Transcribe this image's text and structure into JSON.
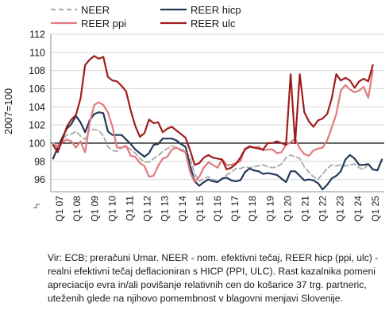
{
  "chart_data": {
    "type": "line",
    "ylabel": "2007=100",
    "ylim": [
      95,
      112
    ],
    "yticks": [
      96,
      98,
      100,
      102,
      104,
      106,
      108,
      110,
      112
    ],
    "axis_break": true,
    "reference_line": 100,
    "legend_position": "top",
    "x_tick_labels": [
      "Q1 07",
      "Q1 08",
      "Q1 09",
      "Q1 10",
      "Q1 11",
      "Q1 12",
      "Q1 13",
      "Q1 14",
      "Q1 15",
      "Q1 16",
      "Q1 17",
      "Q1 18",
      "Q1 19",
      "Q1 20",
      "Q1 21",
      "Q1 22",
      "Q1 23",
      "Q1 24",
      "Q1 25"
    ],
    "series": [
      {
        "name": "NEER",
        "color": "#b0b0b0",
        "dash": "6,4",
        "values": [
          100.0,
          99.7,
          100.4,
          100.9,
          101.0,
          101.3,
          100.8,
          100.4,
          101.5,
          101.5,
          101.4,
          100.8,
          99.6,
          99.2,
          99.1,
          99.5,
          99.6,
          99.3,
          98.9,
          98.3,
          97.9,
          97.9,
          98.3,
          98.6,
          99.1,
          99.4,
          99.7,
          99.5,
          99.3,
          99.2,
          98.3,
          96.6,
          95.8,
          96.1,
          96.3,
          96.0,
          95.8,
          96.0,
          96.5,
          96.8,
          97.2,
          97.2,
          97.4,
          97.3,
          97.4,
          97.5,
          97.6,
          97.4,
          97.3,
          97.4,
          97.7,
          98.4,
          98.7,
          98.5,
          98.3,
          97.4,
          96.8,
          96.3,
          96.0,
          96.6,
          97.2,
          97.6,
          97.5,
          97.6,
          97.5,
          97.6,
          97.7,
          97.3,
          97.1,
          97.7
        ]
      },
      {
        "name": "REER hicp",
        "color": "#243a57",
        "dash": "",
        "values": [
          98.3,
          99.5,
          100.6,
          101.6,
          102.1,
          103.0,
          102.3,
          101.2,
          102.5,
          103.2,
          103.4,
          103.3,
          101.3,
          100.9,
          100.9,
          100.9,
          100.4,
          99.9,
          99.3,
          98.9,
          98.5,
          98.9,
          99.8,
          99.9,
          100.5,
          100.5,
          100.5,
          100.3,
          99.9,
          99.6,
          97.5,
          95.8,
          95.3,
          95.7,
          96.0,
          95.8,
          95.7,
          96.1,
          96.2,
          95.9,
          95.8,
          95.9,
          96.8,
          97.2,
          97.0,
          96.9,
          96.6,
          96.7,
          96.6,
          96.5,
          96.1,
          95.7,
          96.9,
          96.9,
          96.4,
          95.9,
          96.0,
          95.9,
          95.6,
          94.9,
          95.4,
          96.1,
          96.4,
          96.9,
          98.2,
          98.7,
          98.3,
          97.6,
          97.6,
          97.7,
          97.1,
          97.0,
          98.2
        ]
      },
      {
        "name": "REER ppi",
        "color": "#e07a7f",
        "dash": "",
        "values": [
          99.8,
          99.6,
          100.1,
          100.4,
          100.2,
          99.5,
          100.2,
          99.0,
          102.2,
          104.2,
          104.5,
          104.2,
          103.4,
          101.8,
          99.5,
          99.5,
          99.7,
          98.6,
          98.5,
          97.8,
          97.5,
          96.3,
          96.4,
          97.5,
          98.3,
          98.5,
          99.3,
          99.5,
          99.2,
          99.0,
          96.8,
          95.7,
          96.3,
          97.3,
          97.9,
          97.6,
          97.3,
          98.2,
          97.6,
          97.6,
          97.8,
          98.0,
          99.4,
          99.7,
          99.5,
          99.6,
          99.2,
          99.3,
          99.3,
          98.9,
          99.0,
          99.8,
          100.1,
          100.5,
          99.4,
          98.8,
          98.6,
          99.2,
          99.4,
          99.5,
          100.3,
          101.7,
          103.2,
          105.8,
          106.4,
          105.9,
          105.6,
          105.8,
          106.2,
          105.0,
          108.0
        ]
      },
      {
        "name": "REER ulc",
        "color": "#a01c1c",
        "dash": "",
        "values": [
          99.8,
          99.0,
          100.3,
          101.8,
          102.6,
          103.1,
          104.9,
          108.6,
          109.2,
          109.6,
          109.3,
          109.5,
          107.3,
          106.9,
          106.8,
          106.3,
          105.7,
          103.6,
          101.9,
          100.7,
          101.1,
          102.6,
          102.2,
          102.3,
          101.2,
          101.6,
          101.8,
          101.4,
          101.0,
          100.6,
          99.2,
          97.6,
          97.8,
          98.4,
          98.7,
          98.4,
          98.3,
          98.2,
          97.1,
          97.3,
          97.7,
          98.4,
          99.3,
          99.6,
          99.5,
          99.4,
          99.3,
          100.0,
          100.0,
          100.2,
          100.0,
          99.8,
          107.6,
          100.0,
          107.6,
          103.4,
          102.4,
          101.8,
          102.5,
          102.7,
          103.2,
          104.9,
          107.6,
          106.9,
          107.2,
          106.9,
          106.1,
          106.8,
          107.1,
          106.8,
          108.6
        ]
      }
    ]
  },
  "note": "Vir: ECB; preračuni Umar. NEER - nom. efektivni tečaj, REER hicp (ppi, ulc) - realni efektivni tečaj deflacioniran s HICP (PPI, ULC). Rast kazalnika pomeni apreciacijo evra in/ali povišanje relativnih cen do košarice 37 trg. partneric, uteženih glede na njihovo pomembnost v blagovni menjavi Slovenije."
}
